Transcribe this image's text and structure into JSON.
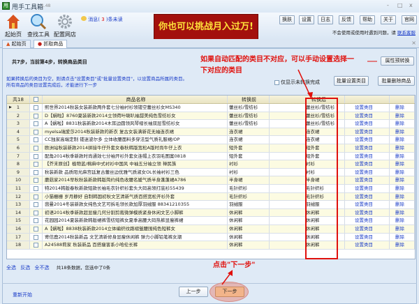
{
  "app": {
    "title": "甩手工具箱",
    "version": "1.48",
    "window_controls": [
      "-",
      "□",
      "x"
    ]
  },
  "toolbar": {
    "tools": [
      {
        "label": "起始页",
        "icon": "home-icon"
      },
      {
        "label": "查找工具",
        "icon": "search-icon"
      },
      {
        "label": "配置网店",
        "icon": "gear-icon"
      }
    ],
    "message_prefix": "消息(",
    "message_count": "3",
    "message_suffix": ")条未读",
    "banner": "你也可以挑战月入过万!",
    "buttons": [
      "换肤",
      "设置",
      "日志",
      "反馈",
      "帮助",
      "关于",
      "官网"
    ],
    "help_text": "不会使用或使用时遇到问题，请",
    "help_link": "联系客服"
  },
  "tabs": [
    {
      "label": "起始页",
      "icon": "home-icon"
    },
    {
      "label": "抓取商品",
      "icon": "grab-icon",
      "active": true
    }
  ],
  "step": {
    "title": "共7步，当前第4步，转换商品类目",
    "attr_button": "属性预转换",
    "hint1": "如果转换后的类目为空，则请点击\"设置类目\"或\"批量设置类目\"，以设置商品所属的类目。",
    "hint2": "所有商品的类目设置完成后，才能进行下一步",
    "only_unfinished": "仅显示未转换完成",
    "batch_set": "批量设置类目",
    "batch_delete": "批量删除商品"
  },
  "table": {
    "count_label": "共18",
    "headers": {
      "name": "商品名称",
      "before": "转换前",
      "after": "转换后"
    },
    "set_label": "设置类目",
    "delete_label": "删除",
    "rows": [
      {
        "n": "1",
        "name": "熙世界2014秋装女装新款两件套七分袖衬衫领镂空蕾丝衫女MS340",
        "before": "蕾丝衫/雪纺衫",
        "after": "蕾丝衫/雪纺衫"
      },
      {
        "n": "2",
        "name": "D【蜗啦】8760夏装新款2014立领荷叶喇叭袖甜美纯色雪纺衫女",
        "before": "蕾丝衫/雪纺衫",
        "after": "蕾丝衫/雪纺衫"
      },
      {
        "n": "3",
        "name": "A【蜗啦】8831秋装新款2014木耳边圆领风琴褶长袖双层雪纺衫女",
        "before": "蕾丝衫/雪纺衫",
        "after": "蕾丝衫/雪纺衫"
      },
      {
        "n": "4",
        "name": "myelsa瑞爱莎2014秋装新款的新衣 复古女装满新花无袖连衣裙",
        "before": "连衣裙",
        "after": "连衣裙"
      },
      {
        "n": "5",
        "name": "CC独家高端定制 镂迷波尔多 立体收腰面料多穿法型气质礼服裙/OP",
        "before": "连衣裙",
        "after": "连衣裙"
      },
      {
        "n": "6",
        "name": "欧洲站秋装新款2014拼接牛仔外套女春秋韩版宽松A版时尚牛仔上衣",
        "before": "短外套",
        "after": "短外套"
      },
      {
        "n": "7",
        "name": "配角2014秋季新款时尚通效七分袖开衫外套女连帽上衣羽毛图案0818",
        "before": "短外套",
        "after": "短外套"
      },
      {
        "n": "8",
        "name": "【芥末原创】植物蓝/棉麻中式衬衫中国风 中袖五分袖立领 禅民族",
        "before": "衬衫",
        "after": "衬衫"
      },
      {
        "n": "9",
        "name": "秋装新款 品质阳光麻宫廷复古蕾丝边优雅气质淑女OL长袖衬衫三色",
        "before": "衬衫",
        "after": "衬衫"
      },
      {
        "n": "10",
        "name": "蘑菇家2014早秋秋装新款韩版简约纯色收腰名媛气质半身蓬蓬裙A786",
        "before": "半身裙",
        "after": "半身裙"
      },
      {
        "n": "11",
        "name": "特2014韩版春秋新款短款长袖毛衣针织衫套头大码高领打底衫55439",
        "before": "毛针织衫",
        "after": "毛针织衫"
      },
      {
        "n": "12",
        "name": "小猫栅栅 岁月静好 自制韩国初秋文艺清新气质百搭宽松开衫外套",
        "before": "毛针织衫",
        "after": "毛针织衫"
      },
      {
        "n": "13",
        "name": "茵曼2014冬装新款女纯色文艺可拆毛领长款加厚羽绒服 883412103​55",
        "before": "羽绒服",
        "after": "羽绒服"
      },
      {
        "n": "14",
        "name": "初语2014秋季新款超显瘦几何分割剪裁微弹模质紧身休闲文艺小脚裤",
        "before": "休闲裤",
        "after": "休闲裤"
      },
      {
        "n": "15",
        "name": "花园园2014夏装新款韩版裙裤雪纺短裤女夏季高腰大码热裤显瘦裤裙",
        "before": "休闲裤",
        "after": "休闲裤"
      },
      {
        "n": "16",
        "name": "A【蜗啦】8838秋装新款2014立体编织纹路褶皱腰围纯色短裤女",
        "before": "休闲裤",
        "after": "休闲裤"
      },
      {
        "n": "17",
        "name": "寄信鹿2014秋装新品 文艺清新修身显瘦休闲裤 弹力小脚铅笔裤女潮",
        "before": "休闲裤",
        "after": "休闲裤"
      },
      {
        "n": "18",
        "name": "A24588莉家 秋装新品 百搭瘦害系小哈伦长裤",
        "before": "休闲裤",
        "after": "休闲裤"
      }
    ]
  },
  "footer": {
    "select_all": "全选",
    "invert": "反选",
    "select_none": "全不选",
    "summary": "共18条数据，您选中了0条",
    "restart": "重新开始",
    "prev": "上一步",
    "next": "下一步"
  },
  "annotations": {
    "note1_line1": "如果自动匹配的类目不对应，可以手动设置选择一",
    "note1_line2": "下对应的类目",
    "note2": "点击\"下一步\"",
    "color": "#e0100c"
  }
}
